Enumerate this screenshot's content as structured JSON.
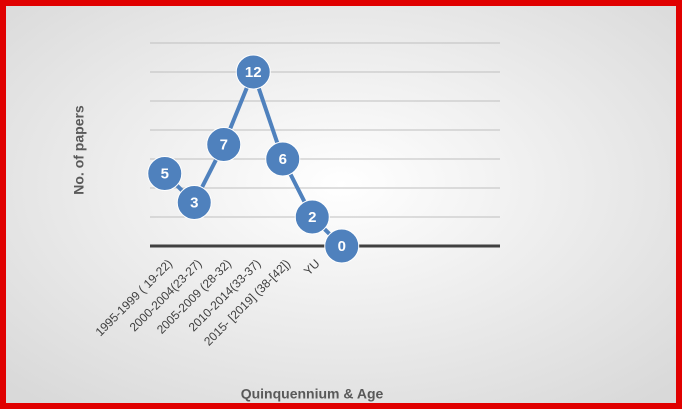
{
  "chart_data": {
    "type": "line",
    "x_label": "Quinquennium & Age",
    "y_label": "No. of papers",
    "categories": [
      "1995-1999 ( 19-22)",
      "2000-2004(23-27)",
      "2005-2009 (28-32)",
      "2010-2014(33-37)",
      "2015- [2019] (38-[42])",
      "YU",
      null
    ],
    "series": [
      {
        "color": "#4f81bd",
        "values": [
          5,
          3,
          7,
          12,
          6,
          2,
          0
        ]
      }
    ],
    "ylim": [
      0,
      14
    ],
    "yticks": [
      0,
      2,
      4,
      6,
      8,
      10,
      12,
      14
    ],
    "grid": true
  }
}
